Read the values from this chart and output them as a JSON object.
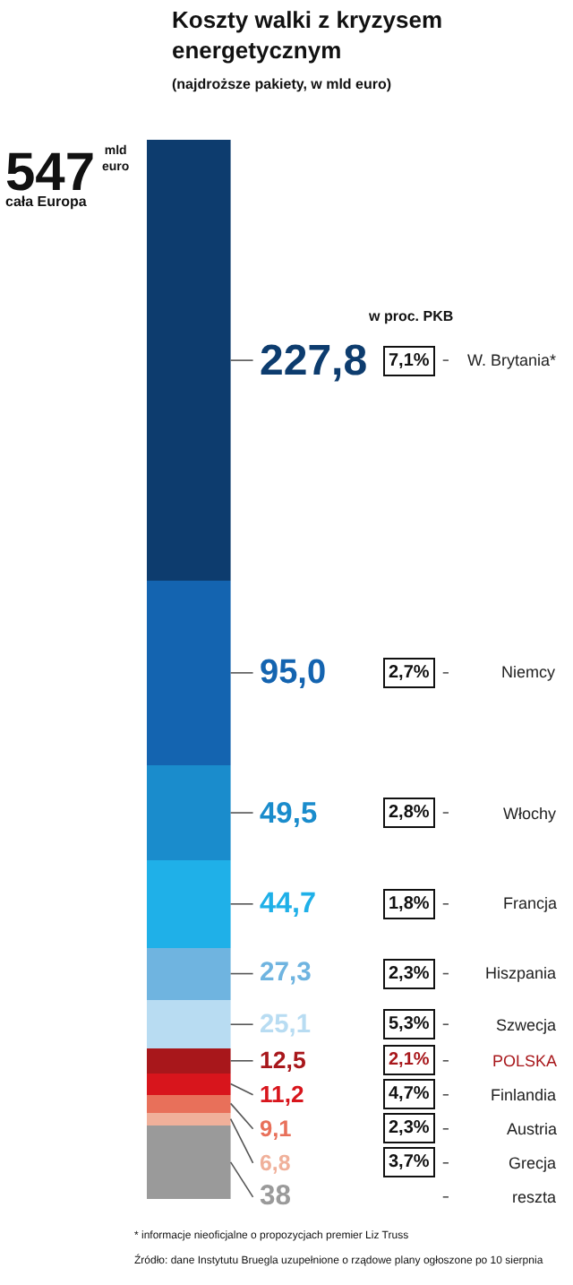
{
  "chart_data": {
    "type": "bar",
    "stacked": true,
    "title": "Koszty walki z kryzysem energetycznym",
    "subtitle": "(najdroższe pakiety, w mld euro)",
    "categories": [
      null
    ],
    "ylim": [
      0,
      547
    ],
    "tick_labels": false,
    "legend": false,
    "series": [
      {
        "name": "reszta",
        "color": "#9a9a9a",
        "values": [
          38
        ],
        "value_labels": [
          "38"
        ]
      },
      {
        "name": "Grecja",
        "color": "#f0b09a",
        "values": [
          6.8
        ],
        "value_labels": [
          "6,8"
        ]
      },
      {
        "name": "Austria",
        "color": "#e8705a",
        "values": [
          9.1
        ],
        "value_labels": [
          "9,1"
        ]
      },
      {
        "name": "Finlandia",
        "color": "#d8151c",
        "values": [
          11.2
        ],
        "value_labels": [
          "11,2"
        ]
      },
      {
        "name": "POLSKA",
        "color": "#a8171b",
        "values": [
          12.5
        ],
        "value_labels": [
          "12,5"
        ]
      },
      {
        "name": "Szwecja",
        "color": "#b8dcf2",
        "values": [
          25.1
        ],
        "value_labels": [
          "25,1"
        ]
      },
      {
        "name": "Hiszpania",
        "color": "#6fb4e0",
        "values": [
          27.3
        ],
        "value_labels": [
          "27,3"
        ]
      },
      {
        "name": "Francja",
        "color": "#1fb0e8",
        "values": [
          44.7
        ],
        "value_labels": [
          "44,7"
        ]
      },
      {
        "name": "Włochy",
        "color": "#1a8ccc",
        "values": [
          49.5
        ],
        "value_labels": [
          "49,5"
        ]
      },
      {
        "name": "Niemcy",
        "color": "#1464b0",
        "values": [
          95.0
        ],
        "value_labels": [
          "95,0"
        ]
      },
      {
        "name": "W. Brytania*",
        "color": "#0d3c6e",
        "values": [
          227.8
        ],
        "value_labels": [
          "227,8"
        ]
      }
    ],
    "annotations": [
      "547",
      "mld euro",
      "cała Europa",
      "w proc. PKB",
      "7,1%",
      "2,7%",
      "2,8%",
      "1,8%",
      "2,3%",
      "5,3%",
      "2,1%",
      "4,7%",
      "2,3%",
      "3,7%",
      "* informacje nieoficjalne o propozycjach premier Liz Truss",
      "Źródło: dane Instytutu Bruegla uzupełnione o rządowe plany ogłoszone po 10 sierpnia"
    ]
  }
}
